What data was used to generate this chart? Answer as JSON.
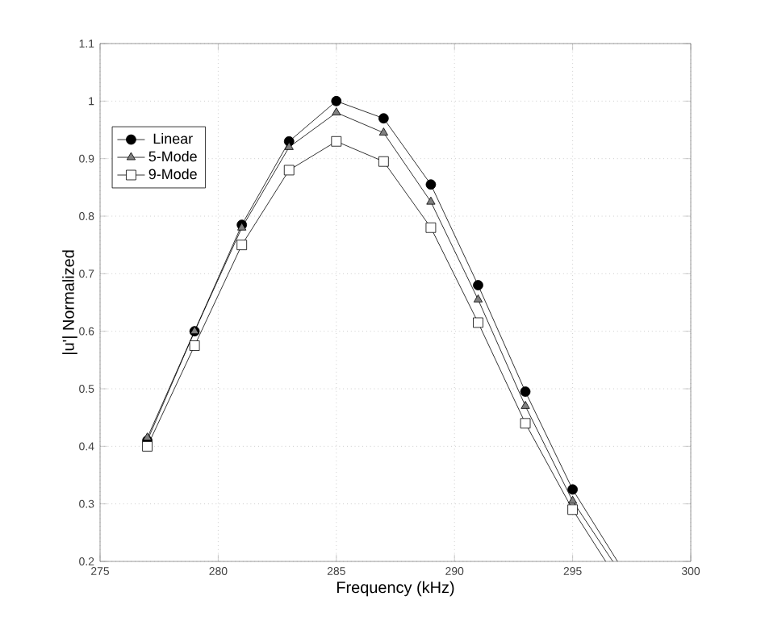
{
  "chart_data": {
    "type": "line",
    "xlabel": "Frequency (kHz)",
    "ylabel": "|u'| Normalized",
    "xlim": [
      275,
      300
    ],
    "xticks": [
      275,
      280,
      285,
      290,
      295,
      300
    ],
    "ylim": [
      0.2,
      1.1
    ],
    "yticks": [
      0.2,
      0.3,
      0.4,
      0.5,
      0.6,
      0.7,
      0.8,
      0.9,
      1,
      1.1
    ],
    "grid": true,
    "legend": "top left",
    "line_style": "solid",
    "series": [
      {
        "name": "Linear",
        "color": "#000000",
        "marker": "circle",
        "x": [
          277,
          279,
          281,
          283,
          285,
          287,
          289,
          291,
          293,
          295,
          296.9
        ],
        "values": [
          0.41,
          0.6,
          0.785,
          0.93,
          1.0,
          0.97,
          0.855,
          0.68,
          0.495,
          0.325,
          0.2
        ]
      },
      {
        "name": "5-Mode",
        "color": "#808080",
        "marker": "triangle",
        "x": [
          277,
          279,
          281,
          283,
          285,
          287,
          289,
          291,
          293,
          295,
          296.7
        ],
        "values": [
          0.415,
          0.6,
          0.78,
          0.92,
          0.98,
          0.945,
          0.825,
          0.655,
          0.47,
          0.305,
          0.2
        ]
      },
      {
        "name": "9-Mode",
        "color": "#ffffff",
        "marker": "square",
        "x": [
          277,
          279,
          281,
          283,
          285,
          287,
          289,
          291,
          293,
          295,
          296.4
        ],
        "values": [
          0.4,
          0.575,
          0.75,
          0.88,
          0.93,
          0.895,
          0.78,
          0.615,
          0.44,
          0.29,
          0.2
        ]
      }
    ]
  }
}
